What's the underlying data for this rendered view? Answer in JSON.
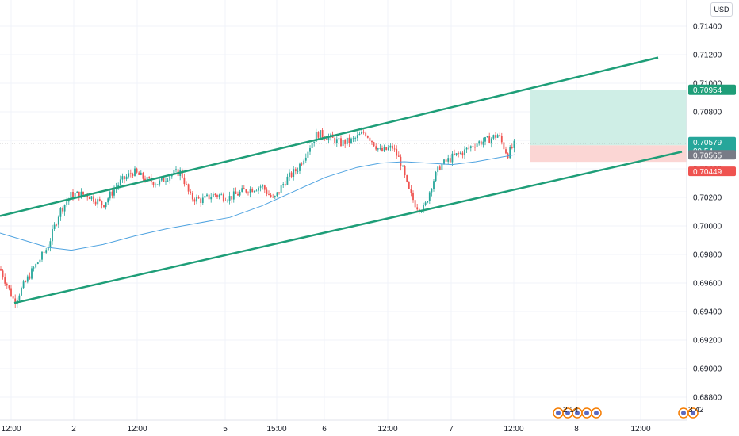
{
  "currency_button": "USD",
  "colors": {
    "up": "#26a69a",
    "down": "#ef5350",
    "channel": "#1e9e78",
    "ma": "#4fa3e0",
    "target_zone": "#cfeee6",
    "stop_zone": "#fbd6d4",
    "grid": "#f0f3fa"
  },
  "chart_data": {
    "type": "candlestick",
    "y_ticks": [
      "0.71400",
      "0.71200",
      "0.71000",
      "0.70800",
      "0.70600",
      "0.70400",
      "0.70200",
      "0.70000",
      "0.69800",
      "0.69600",
      "0.69400",
      "0.69200",
      "0.69000",
      "0.68800"
    ],
    "x_ticks": [
      "12:00",
      "2",
      "12:00",
      "5",
      "15:00",
      "6",
      "12:00",
      "7",
      "12:00",
      "8",
      "12:00"
    ],
    "ylim": [
      0.6875,
      0.7155
    ],
    "price_path": [
      [
        0,
        0.697
      ],
      [
        18,
        0.6947
      ],
      [
        40,
        0.6968
      ],
      [
        60,
        0.6985
      ],
      [
        75,
        0.701
      ],
      [
        90,
        0.7022
      ],
      [
        110,
        0.7022
      ],
      [
        130,
        0.7015
      ],
      [
        150,
        0.703
      ],
      [
        168,
        0.7038
      ],
      [
        185,
        0.7032
      ],
      [
        200,
        0.703
      ],
      [
        215,
        0.7036
      ],
      [
        228,
        0.7038
      ],
      [
        240,
        0.702
      ],
      [
        255,
        0.7018
      ],
      [
        270,
        0.7022
      ],
      [
        290,
        0.702
      ],
      [
        310,
        0.7025
      ],
      [
        330,
        0.7028
      ],
      [
        345,
        0.7018
      ],
      [
        360,
        0.7032
      ],
      [
        375,
        0.704
      ],
      [
        390,
        0.7055
      ],
      [
        400,
        0.7065
      ],
      [
        415,
        0.7062
      ],
      [
        430,
        0.7058
      ],
      [
        445,
        0.706
      ],
      [
        460,
        0.7066
      ],
      [
        480,
        0.7052
      ],
      [
        495,
        0.7055
      ],
      [
        505,
        0.7045
      ],
      [
        515,
        0.7025
      ],
      [
        525,
        0.7014
      ],
      [
        535,
        0.7012
      ],
      [
        545,
        0.703
      ],
      [
        555,
        0.7042
      ],
      [
        570,
        0.7048
      ],
      [
        585,
        0.7052
      ],
      [
        600,
        0.7058
      ],
      [
        615,
        0.706
      ],
      [
        628,
        0.7064
      ],
      [
        640,
        0.705
      ],
      [
        650,
        0.7058
      ]
    ],
    "moving_average": [
      [
        0,
        0.6995
      ],
      [
        30,
        0.699
      ],
      [
        60,
        0.6985
      ],
      [
        90,
        0.6983
      ],
      [
        130,
        0.6987
      ],
      [
        170,
        0.6993
      ],
      [
        210,
        0.6998
      ],
      [
        250,
        0.7002
      ],
      [
        290,
        0.7006
      ],
      [
        330,
        0.7014
      ],
      [
        370,
        0.7024
      ],
      [
        410,
        0.7034
      ],
      [
        450,
        0.7041
      ],
      [
        480,
        0.7044
      ],
      [
        510,
        0.7045
      ],
      [
        540,
        0.7044
      ],
      [
        570,
        0.7043
      ],
      [
        600,
        0.7045
      ],
      [
        630,
        0.7048
      ],
      [
        650,
        0.705
      ]
    ],
    "channel_upper": [
      [
        0,
        0.7007
      ],
      [
        830,
        0.7118
      ]
    ],
    "channel_lower": [
      [
        18,
        0.6946
      ],
      [
        860,
        0.7052
      ]
    ],
    "position": {
      "target": 0.70954,
      "entry": 0.70565,
      "stop": 0.70449,
      "x_start": 668,
      "x_end": 866
    },
    "last_price": "0.70579",
    "countdown": "09:54",
    "entry_label": "0.70565",
    "target_label": "0.70954",
    "stop_label": "0.70449",
    "events_left": "2 14",
    "events_right": "3 42"
  }
}
